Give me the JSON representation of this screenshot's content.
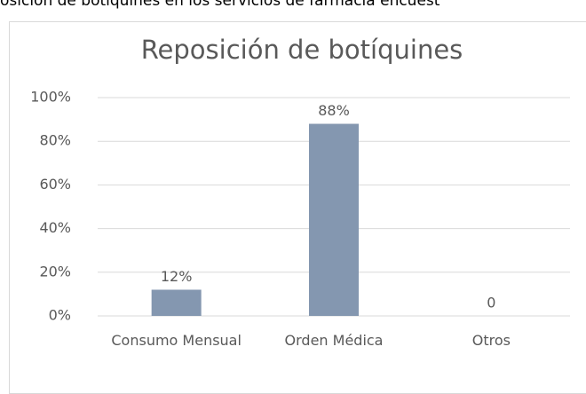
{
  "caption": "osición de botiquines en los servicios de farmacia encuest",
  "chart_data": {
    "type": "bar",
    "title": "Reposición de botíquines",
    "categories": [
      "Consumo Mensual",
      "Orden Médica",
      "Otros"
    ],
    "values": [
      12,
      88,
      0
    ],
    "value_labels": [
      "12%",
      "88%",
      "0"
    ],
    "color": "#8497b0",
    "ylim": [
      0,
      100
    ],
    "yticks": [
      {
        "value": 0,
        "label": "0%"
      },
      {
        "value": 20,
        "label": "20%"
      },
      {
        "value": 40,
        "label": "40%"
      },
      {
        "value": 60,
        "label": "60%"
      },
      {
        "value": 80,
        "label": "80%"
      },
      {
        "value": 100,
        "label": "100%"
      }
    ],
    "grid": true
  }
}
